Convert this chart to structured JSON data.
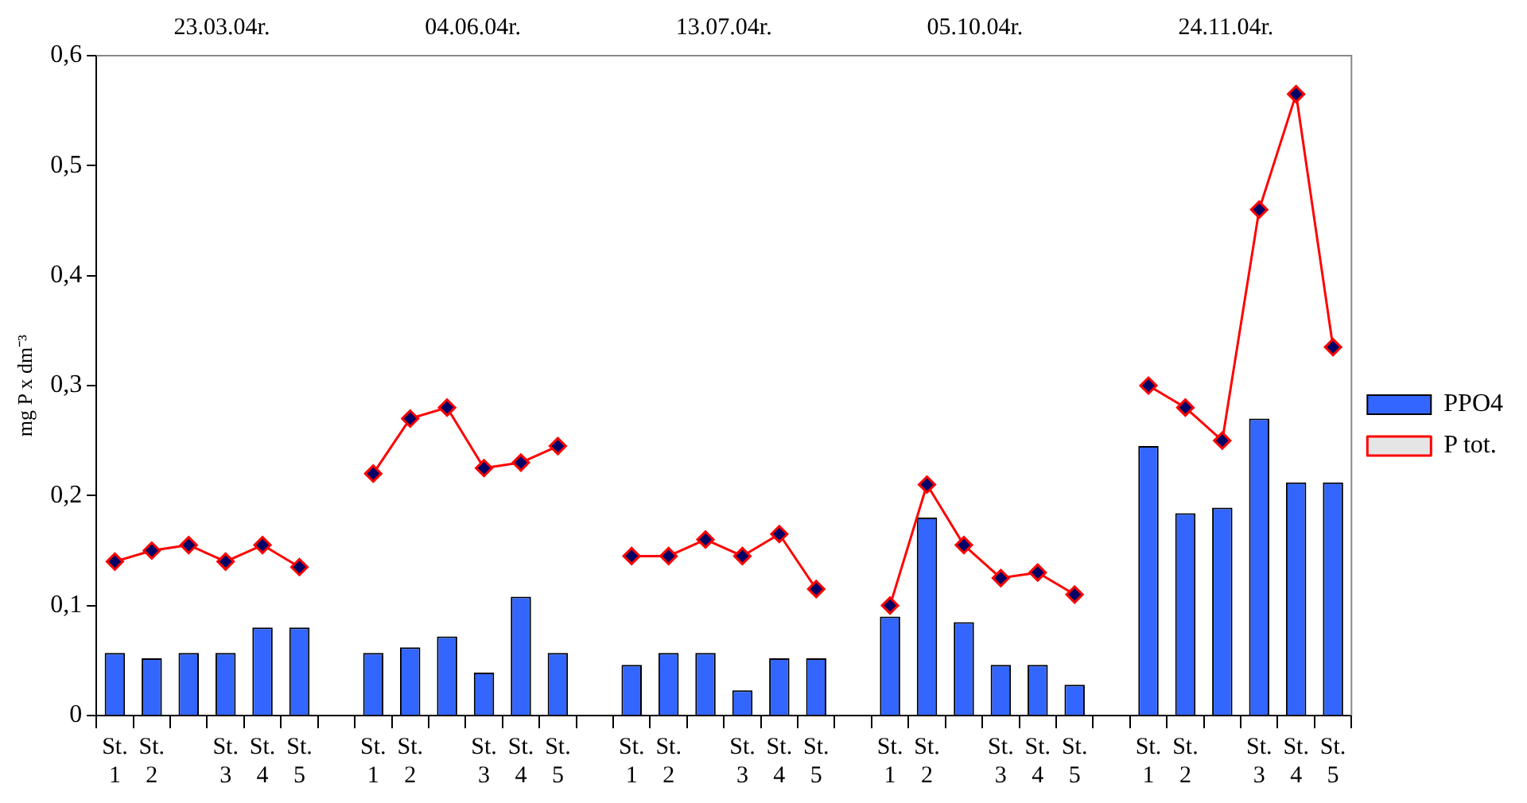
{
  "chart_data": {
    "type": "bar",
    "ylabel": "mg P x dm⁻³",
    "annotations": [
      "23.03.04r.",
      "04.06.04r.",
      "13.07.04r.",
      "05.10.04r.",
      "24.11.04r."
    ],
    "categories": [
      "St. 1",
      "St. 2",
      null,
      "St. 3",
      "St. 4",
      "St. 5",
      null,
      "St. 1",
      "St. 2",
      null,
      "St. 3",
      "St. 4",
      "St. 5",
      null,
      "St. 1",
      "St. 2",
      null,
      "St. 3",
      "St. 4",
      "St. 5",
      null,
      "St. 1",
      "St. 2",
      null,
      "St. 3",
      "St. 4",
      "St. 5",
      null,
      "St. 1",
      "St. 2",
      null,
      "St. 3",
      "St. 4",
      "St. 5"
    ],
    "series": [
      {
        "name": "PPO4",
        "color": "#3366ff",
        "values": [
          0.057,
          0.052,
          0.057,
          0.057,
          0.08,
          0.08,
          null,
          0.057,
          0.062,
          0.072,
          0.039,
          0.108,
          0.057,
          null,
          0.046,
          0.057,
          0.057,
          0.023,
          0.052,
          0.052,
          null,
          0.09,
          0.18,
          0.085,
          0.046,
          0.046,
          0.028,
          null,
          0.245,
          0.184,
          0.189,
          0.27,
          0.212,
          0.212
        ]
      },
      {
        "name": "P tot.",
        "type": "line",
        "color": "#ff0000",
        "values": [
          0.14,
          0.15,
          0.155,
          0.14,
          0.155,
          0.135,
          null,
          0.22,
          0.27,
          0.28,
          0.225,
          0.23,
          0.245,
          null,
          0.145,
          0.145,
          0.16,
          0.145,
          0.165,
          0.115,
          null,
          0.1,
          0.21,
          0.155,
          0.125,
          0.13,
          0.11,
          null,
          0.3,
          0.28,
          0.25,
          0.46,
          0.565,
          0.335
        ]
      }
    ],
    "ylim": [
      0,
      0.6
    ],
    "yticks": [
      0,
      {
        "value": 0.1,
        "label": "0,1"
      },
      {
        "value": 0.2,
        "label": "0,2"
      },
      {
        "value": 0.3,
        "label": "0,3"
      },
      {
        "value": 0.4,
        "label": "0,4"
      },
      {
        "value": 0.5,
        "label": "0,5"
      },
      {
        "value": 0.6,
        "label": "0,6"
      }
    ],
    "grid": false,
    "legend": "right",
    "marker": "diamond",
    "line_style": "solid"
  }
}
